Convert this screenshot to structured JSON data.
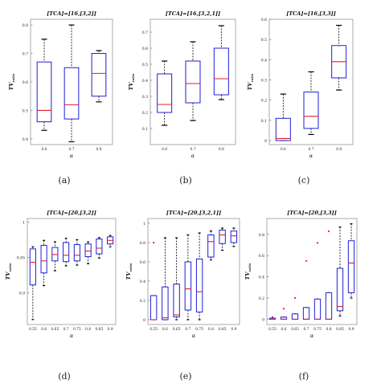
{
  "figure": {
    "captions": [
      "(a)",
      "(b)",
      "(c)",
      "(d)",
      "(e)",
      "(f)"
    ]
  },
  "colors": {
    "box": "#1f1fd6",
    "median": "#e0202a",
    "whisker": "#000000",
    "outlier": "#e0202a"
  },
  "chart_data": [
    {
      "type": "box",
      "title": "[TCA]=[16,[3,2]]",
      "xlabel": "α",
      "ylabel": "TV ratio",
      "categories": [
        "0.6",
        "0.7",
        "0.8"
      ],
      "ylim": [
        0.38,
        0.82
      ],
      "yticks": [
        0.4,
        0.5,
        0.6,
        0.7,
        0.8
      ],
      "ytick_labels": [
        "0.4",
        "0.5",
        "0.6",
        "0.7",
        "0.8"
      ],
      "boxes": [
        {
          "whislo": 0.43,
          "q1": 0.46,
          "med": 0.5,
          "q3": 0.67,
          "whishi": 0.75
        },
        {
          "whislo": 0.39,
          "q1": 0.47,
          "med": 0.52,
          "q3": 0.65,
          "whishi": 0.8
        },
        {
          "whislo": 0.53,
          "q1": 0.55,
          "med": 0.63,
          "q3": 0.7,
          "whishi": 0.71
        }
      ],
      "outliers": []
    },
    {
      "type": "box",
      "title": "[TCA]=[16,[3,2,1]]",
      "xlabel": "α",
      "ylabel": "TV ratio",
      "categories": [
        "0.6",
        "0.7",
        "0.8"
      ],
      "ylim": [
        0.0,
        0.78
      ],
      "yticks": [
        0.1,
        0.2,
        0.3,
        0.4,
        0.5,
        0.6,
        0.7
      ],
      "ytick_labels": [
        "0.1",
        "0.2",
        "0.3",
        "0.4",
        "0.5",
        "0.6",
        "0.7"
      ],
      "boxes": [
        {
          "whislo": 0.12,
          "q1": 0.2,
          "med": 0.25,
          "q3": 0.44,
          "whishi": 0.52
        },
        {
          "whislo": 0.15,
          "q1": 0.26,
          "med": 0.38,
          "q3": 0.52,
          "whishi": 0.64
        },
        {
          "whislo": 0.28,
          "q1": 0.31,
          "med": 0.41,
          "q3": 0.6,
          "whishi": 0.74
        }
      ],
      "outliers": []
    },
    {
      "type": "box",
      "title": "[TCA]=[16,[3,3]]",
      "xlabel": "α",
      "ylabel": "TV ratio",
      "categories": [
        "0.6",
        "0.7",
        "0.8"
      ],
      "ylim": [
        -0.02,
        0.6
      ],
      "yticks": [
        0,
        0.1,
        0.2,
        0.3,
        0.4,
        0.5,
        0.6
      ],
      "ytick_labels": [
        "0",
        "0.1",
        "0.2",
        "0.3",
        "0.4",
        "0.5",
        "0.6"
      ],
      "boxes": [
        {
          "whislo": 0.0,
          "q1": 0.0,
          "med": 0.01,
          "q3": 0.11,
          "whishi": 0.23
        },
        {
          "whislo": 0.03,
          "q1": 0.06,
          "med": 0.12,
          "q3": 0.24,
          "whishi": 0.34
        },
        {
          "whislo": 0.25,
          "q1": 0.31,
          "med": 0.39,
          "q3": 0.47,
          "whishi": 0.57
        }
      ],
      "outliers": []
    },
    {
      "type": "box",
      "title": "[TCA]=[20,[3,2]]",
      "xlabel": "α",
      "ylabel": "TV ratio",
      "categories": [
        "0.55",
        "0.6",
        "0.65",
        "0.7",
        "0.75",
        "0.8",
        "0.85",
        "0.9"
      ],
      "ylim": [
        0.855,
        1.005
      ],
      "yticks": [
        0.9,
        0.95,
        1.0
      ],
      "ytick_labels": [
        "0.9",
        "0.95",
        "1"
      ],
      "boxes": [
        {
          "whislo": 0.862,
          "q1": 0.911,
          "med": 0.943,
          "q3": 0.962,
          "whishi": 0.965
        },
        {
          "whislo": 0.91,
          "q1": 0.928,
          "med": 0.945,
          "q3": 0.967,
          "whishi": 0.974
        },
        {
          "whislo": 0.931,
          "q1": 0.945,
          "med": 0.954,
          "q3": 0.964,
          "whishi": 0.972
        },
        {
          "whislo": 0.938,
          "q1": 0.944,
          "med": 0.953,
          "q3": 0.971,
          "whishi": 0.977
        },
        {
          "whislo": 0.939,
          "q1": 0.945,
          "med": 0.953,
          "q3": 0.968,
          "whishi": 0.975
        },
        {
          "whislo": 0.941,
          "q1": 0.951,
          "med": 0.959,
          "q3": 0.969,
          "whishi": 0.972
        },
        {
          "whislo": 0.949,
          "q1": 0.955,
          "med": 0.963,
          "q3": 0.976,
          "whishi": 0.978
        },
        {
          "whislo": 0.965,
          "q1": 0.969,
          "med": 0.974,
          "q3": 0.979,
          "whishi": 0.981
        }
      ],
      "outliers": []
    },
    {
      "type": "box",
      "title": "[TCA]=[20,[3,2,1]]",
      "xlabel": "α",
      "ylabel": "TV ratio",
      "categories": [
        "0.55",
        "0.6",
        "0.65",
        "0.7",
        "0.75",
        "0.8",
        "0.85",
        "0.9"
      ],
      "ylim": [
        -0.05,
        1.05
      ],
      "yticks": [
        0,
        0.2,
        0.4,
        0.6,
        0.8,
        1.0
      ],
      "ytick_labels": [
        "0",
        "0.2",
        "0.4",
        "0.6",
        "0.8",
        "1"
      ],
      "boxes": [
        {
          "whislo": 0.0,
          "q1": 0.0,
          "med": 0.0,
          "q3": 0.25,
          "whishi": 0.25
        },
        {
          "whislo": 0.0,
          "q1": 0.0,
          "med": 0.02,
          "q3": 0.34,
          "whishi": 0.85
        },
        {
          "whislo": 0.0,
          "q1": 0.03,
          "med": 0.05,
          "q3": 0.37,
          "whishi": 0.85
        },
        {
          "whislo": 0.0,
          "q1": 0.1,
          "med": 0.32,
          "q3": 0.6,
          "whishi": 0.88
        },
        {
          "whislo": 0.0,
          "q1": 0.08,
          "med": 0.29,
          "q3": 0.63,
          "whishi": 0.9
        },
        {
          "whislo": 0.62,
          "q1": 0.65,
          "med": 0.81,
          "q3": 0.88,
          "whishi": 0.92
        },
        {
          "whislo": 0.72,
          "q1": 0.79,
          "med": 0.88,
          "q3": 0.93,
          "whishi": 0.95
        },
        {
          "whislo": 0.76,
          "q1": 0.8,
          "med": 0.87,
          "q3": 0.92,
          "whishi": 0.95
        }
      ],
      "outliers": [
        {
          "category_index": 0,
          "value": 0.8
        }
      ]
    },
    {
      "type": "box",
      "title": "[TCA]=[20,[3,3]]",
      "xlabel": "α",
      "ylabel": "TV ratio",
      "categories": [
        "0.55",
        "0.6",
        "0.65",
        "0.7",
        "0.75",
        "0.8",
        "0.85",
        "0.9"
      ],
      "ylim": [
        -0.05,
        0.95
      ],
      "yticks": [
        0,
        0.2,
        0.4,
        0.6,
        0.8
      ],
      "ytick_labels": [
        "0",
        "0.2",
        "0.4",
        "0.6",
        "0.8"
      ],
      "boxes": [
        {
          "whislo": 0.0,
          "q1": 0.0,
          "med": 0.0,
          "q3": 0.01,
          "whishi": 0.01
        },
        {
          "whislo": 0.0,
          "q1": 0.0,
          "med": 0.0,
          "q3": 0.02,
          "whishi": 0.02
        },
        {
          "whislo": 0.0,
          "q1": 0.0,
          "med": 0.0,
          "q3": 0.05,
          "whishi": 0.05
        },
        {
          "whislo": 0.0,
          "q1": 0.0,
          "med": 0.0,
          "q3": 0.11,
          "whishi": 0.11
        },
        {
          "whislo": 0.0,
          "q1": 0.0,
          "med": 0.0,
          "q3": 0.19,
          "whishi": 0.19
        },
        {
          "whislo": 0.0,
          "q1": 0.0,
          "med": 0.0,
          "q3": 0.25,
          "whishi": 0.25
        },
        {
          "whislo": 0.03,
          "q1": 0.08,
          "med": 0.12,
          "q3": 0.48,
          "whishi": 0.87
        },
        {
          "whislo": 0.2,
          "q1": 0.25,
          "med": 0.53,
          "q3": 0.74,
          "whishi": 0.9
        }
      ],
      "outliers": [
        {
          "category_index": 0,
          "value": 0.02
        },
        {
          "category_index": 1,
          "value": 0.1
        },
        {
          "category_index": 2,
          "value": 0.2
        },
        {
          "category_index": 3,
          "value": 0.55
        },
        {
          "category_index": 4,
          "value": 0.72
        },
        {
          "category_index": 5,
          "value": 0.83
        }
      ]
    }
  ]
}
